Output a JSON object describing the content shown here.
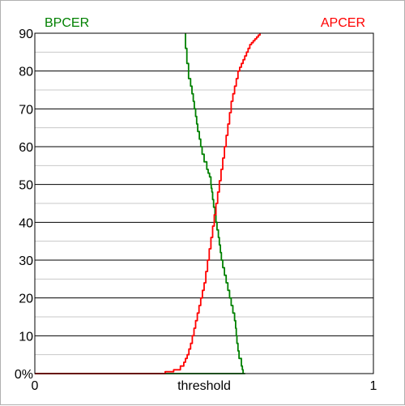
{
  "chart_data": {
    "type": "line",
    "xlabel": "threshold",
    "xlim": [
      0,
      1
    ],
    "ylim": [
      0,
      90
    ],
    "x_ticks": [
      "0",
      "1"
    ],
    "y_ticks": [
      "0%",
      "10",
      "20",
      "30",
      "40",
      "50",
      "60",
      "70",
      "80",
      "90"
    ],
    "grid": true,
    "legend": {
      "left_label": "BPCER",
      "right_label": "APCER",
      "placement": "top"
    },
    "series": [
      {
        "name": "BPCER",
        "color": "#008000",
        "x": [
          0.0,
          0.62,
          0.615,
          0.613,
          0.61,
          0.603,
          0.6,
          0.597,
          0.595,
          0.593,
          0.59,
          0.585,
          0.58,
          0.575,
          0.57,
          0.565,
          0.56,
          0.555,
          0.551,
          0.548,
          0.545,
          0.542,
          0.538,
          0.535,
          0.532,
          0.528,
          0.525,
          0.523,
          0.521,
          0.52,
          0.516,
          0.512,
          0.508,
          0.5,
          0.494,
          0.49,
          0.486,
          0.481,
          0.478,
          0.475,
          0.471,
          0.468,
          0.464,
          0.46,
          0.454,
          0.449,
          0.445
        ],
        "y": [
          0,
          0,
          1,
          2,
          4,
          6,
          8,
          10,
          12,
          14,
          16,
          18,
          20,
          22,
          24,
          26,
          28,
          30,
          32,
          34,
          36,
          38,
          40,
          42,
          44,
          46,
          48,
          49,
          50,
          52,
          53,
          54,
          56,
          58,
          60,
          62,
          64,
          66,
          68,
          70,
          72,
          74,
          76,
          78,
          82,
          86,
          90
        ]
      },
      {
        "name": "APCER",
        "color": "#ff0000",
        "x": [
          0.0,
          0.35,
          0.385,
          0.41,
          0.43,
          0.44,
          0.445,
          0.45,
          0.455,
          0.46,
          0.465,
          0.47,
          0.475,
          0.48,
          0.485,
          0.49,
          0.495,
          0.5,
          0.505,
          0.51,
          0.515,
          0.52,
          0.525,
          0.53,
          0.535,
          0.54,
          0.545,
          0.55,
          0.555,
          0.56,
          0.565,
          0.57,
          0.575,
          0.58,
          0.585,
          0.59,
          0.595,
          0.6,
          0.605,
          0.61,
          0.615,
          0.62,
          0.625,
          0.63,
          0.635,
          0.64,
          0.645,
          0.65,
          0.655,
          0.66,
          0.665
        ],
        "y": [
          0,
          0,
          0.5,
          1,
          2,
          3,
          4,
          5,
          6.5,
          8,
          10,
          12,
          14,
          16,
          18,
          20,
          22,
          24,
          27,
          30,
          33,
          36,
          39,
          42,
          45,
          48,
          51,
          54,
          57,
          60,
          63,
          66,
          69,
          72,
          74,
          76,
          78,
          80,
          81,
          82,
          83,
          84,
          85,
          86,
          87,
          87.5,
          88,
          88.5,
          89,
          89.5,
          90
        ]
      }
    ]
  }
}
